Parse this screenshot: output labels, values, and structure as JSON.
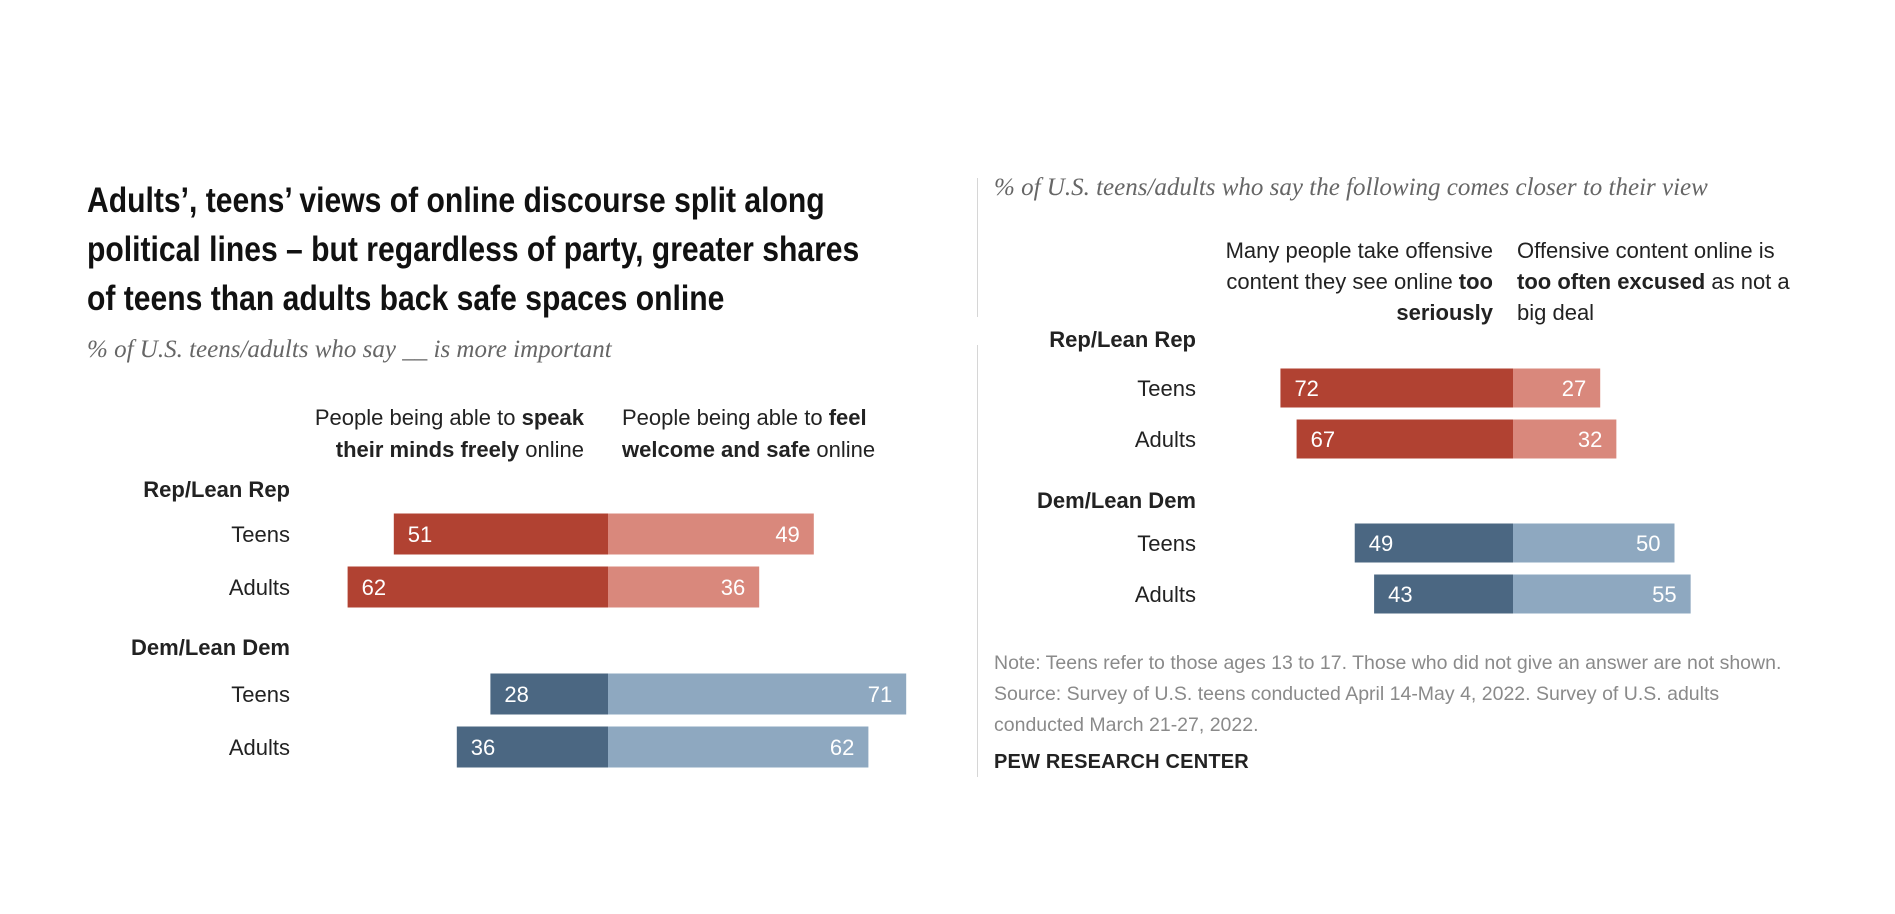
{
  "title_lines": [
    "Adults’, teens’ views of online discourse split along",
    "political lines – but regardless of party, greater shares",
    "of teens than adults back safe spaces online"
  ],
  "note_lines": [
    "Note: Teens refer to those ages 13 to 17. Those who did not give an answer are not shown.",
    "Source: Survey of U.S. teens conducted April 14-May 4, 2022. Survey of U.S. adults",
    "conducted March 21-27, 2022."
  ],
  "brand": "PEW RESEARCH CENTER",
  "colors": {
    "rep_dark": "#b14232",
    "rep_light": "#d9887c",
    "dem_dark": "#4b6782",
    "dem_light": "#8ea8c0"
  },
  "chart_data": [
    {
      "type": "bar",
      "orientation": "horizontal-diverging",
      "subtitle": "% of U.S. teens/adults who say __ is more important",
      "column_headers": {
        "left": [
          [
            {
              "t": "People being able to ",
              "b": false
            },
            {
              "t": "speak",
              "b": true
            }
          ],
          [
            {
              "t": "their minds freely",
              "b": true
            },
            {
              "t": " online",
              "b": false
            }
          ]
        ],
        "right": [
          [
            {
              "t": "People being able to ",
              "b": false
            },
            {
              "t": "feel",
              "b": true
            }
          ],
          [
            {
              "t": "welcome and safe",
              "b": true
            },
            {
              "t": " online",
              "b": false
            }
          ]
        ]
      },
      "series": [
        {
          "name": "People being able to speak their minds freely online",
          "side": "left"
        },
        {
          "name": "People being able to feel welcome and safe online",
          "side": "right"
        }
      ],
      "groups": [
        {
          "label": "Rep/Lean Rep",
          "party": "rep",
          "rows": [
            {
              "label": "Teens",
              "left": 51,
              "right": 49
            },
            {
              "label": "Adults",
              "left": 62,
              "right": 36
            }
          ]
        },
        {
          "label": "Dem/Lean Dem",
          "party": "dem",
          "rows": [
            {
              "label": "Teens",
              "left": 28,
              "right": 71
            },
            {
              "label": "Adults",
              "left": 36,
              "right": 62
            }
          ]
        }
      ]
    },
    {
      "type": "bar",
      "orientation": "horizontal-diverging",
      "subtitle": "% of U.S. teens/adults who say the following comes closer to their view",
      "column_headers": {
        "left": [
          [
            {
              "t": "Many people take offensive",
              "b": false
            }
          ],
          [
            {
              "t": "content they see online ",
              "b": false
            },
            {
              "t": "too",
              "b": true
            }
          ],
          [
            {
              "t": "seriously",
              "b": true
            }
          ]
        ],
        "right": [
          [
            {
              "t": "Offensive content online is",
              "b": false
            }
          ],
          [
            {
              "t": "too often excused",
              "b": true
            },
            {
              "t": " as not a",
              "b": false
            }
          ],
          [
            {
              "t": "big deal",
              "b": false
            }
          ]
        ]
      },
      "series": [
        {
          "name": "Many people take offensive content they see online too seriously",
          "side": "left"
        },
        {
          "name": "Offensive content online is too often excused as not a big deal",
          "side": "right"
        }
      ],
      "groups": [
        {
          "label": "Rep/Lean Rep",
          "party": "rep",
          "rows": [
            {
              "label": "Teens",
              "left": 72,
              "right": 27
            },
            {
              "label": "Adults",
              "left": 67,
              "right": 32
            }
          ]
        },
        {
          "label": "Dem/Lean Dem",
          "party": "dem",
          "rows": [
            {
              "label": "Teens",
              "left": 49,
              "right": 50
            },
            {
              "label": "Adults",
              "left": 43,
              "right": 55
            }
          ]
        }
      ]
    }
  ]
}
